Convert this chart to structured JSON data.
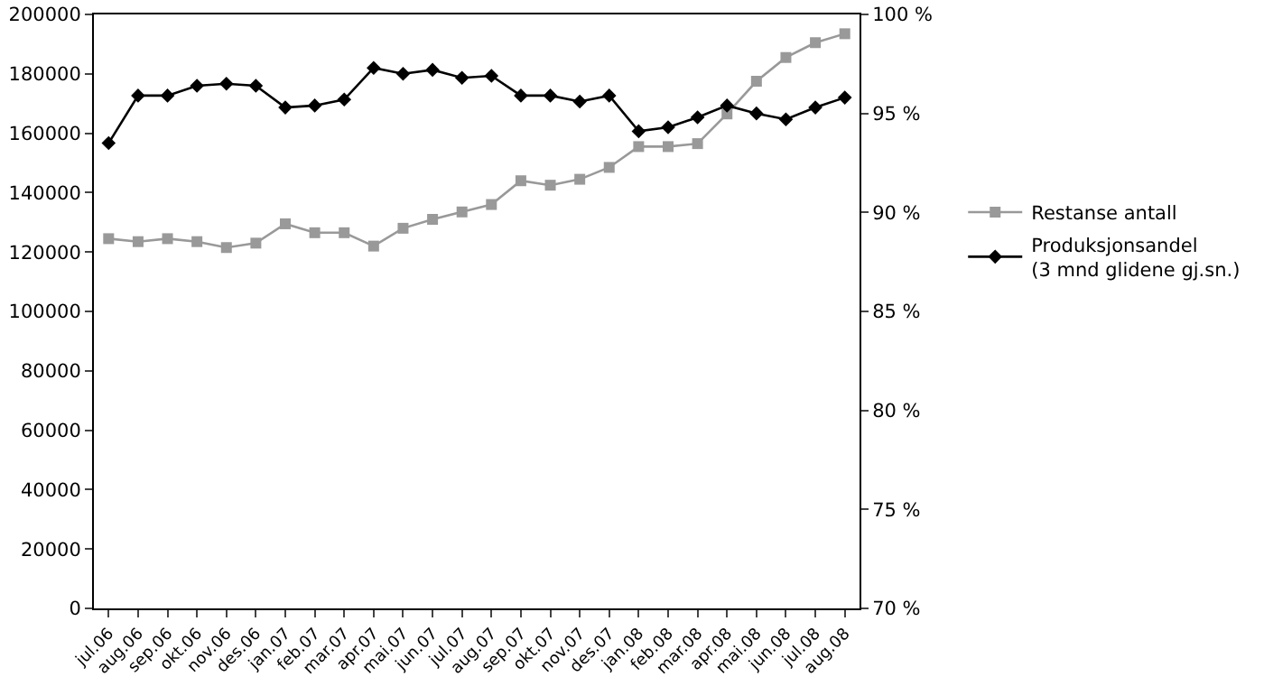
{
  "chart_data": {
    "type": "line",
    "categories": [
      "jul.06",
      "aug.06",
      "sep.06",
      "okt.06",
      "nov.06",
      "des.06",
      "jan.07",
      "feb.07",
      "mar.07",
      "apr.07",
      "mai.07",
      "jun.07",
      "jul.07",
      "aug.07",
      "sep.07",
      "okt.07",
      "nov.07",
      "des.07",
      "jan.08",
      "feb.08",
      "mar.08",
      "apr.08",
      "mai.08",
      "jun.08",
      "jul.08",
      "aug.08"
    ],
    "series": [
      {
        "name": "Restanse antall",
        "color": "#999999",
        "marker": "square",
        "values": [
          124500,
          123500,
          124500,
          123500,
          121500,
          123000,
          129500,
          126500,
          126500,
          122000,
          128000,
          131000,
          133500,
          136000,
          144000,
          142500,
          144500,
          148500,
          155500,
          155500,
          156500,
          166500,
          177500,
          185500,
          190500,
          193500
        ]
      },
      {
        "name": "Produksjonsandel\n(3 mnd glidene gj.sn.)",
        "color": "#000000",
        "marker": "diamond",
        "axis": "y2",
        "values": [
          93.5,
          95.9,
          95.9,
          96.4,
          96.5,
          96.4,
          95.3,
          95.4,
          95.7,
          97.3,
          97.0,
          97.2,
          96.8,
          96.9,
          95.9,
          95.9,
          95.6,
          95.9,
          94.1,
          94.3,
          94.8,
          95.4,
          95.0,
          94.7,
          95.3,
          95.8
        ]
      }
    ],
    "ylim": [
      0,
      200000
    ],
    "yticks": [
      0,
      20000,
      40000,
      60000,
      80000,
      100000,
      120000,
      140000,
      160000,
      180000,
      200000
    ],
    "y2lim": [
      70,
      100
    ],
    "y2ticks": [
      {
        "value": 70,
        "label": "70 %"
      },
      {
        "value": 75,
        "label": "75 %"
      },
      {
        "value": 80,
        "label": "80 %"
      },
      {
        "value": 85,
        "label": "85 %"
      },
      {
        "value": 90,
        "label": "90 %"
      },
      {
        "value": 95,
        "label": "95 %"
      },
      {
        "value": 100,
        "label": "100 %"
      }
    ],
    "grid": false,
    "legend": "right",
    "line_style": "solid"
  }
}
